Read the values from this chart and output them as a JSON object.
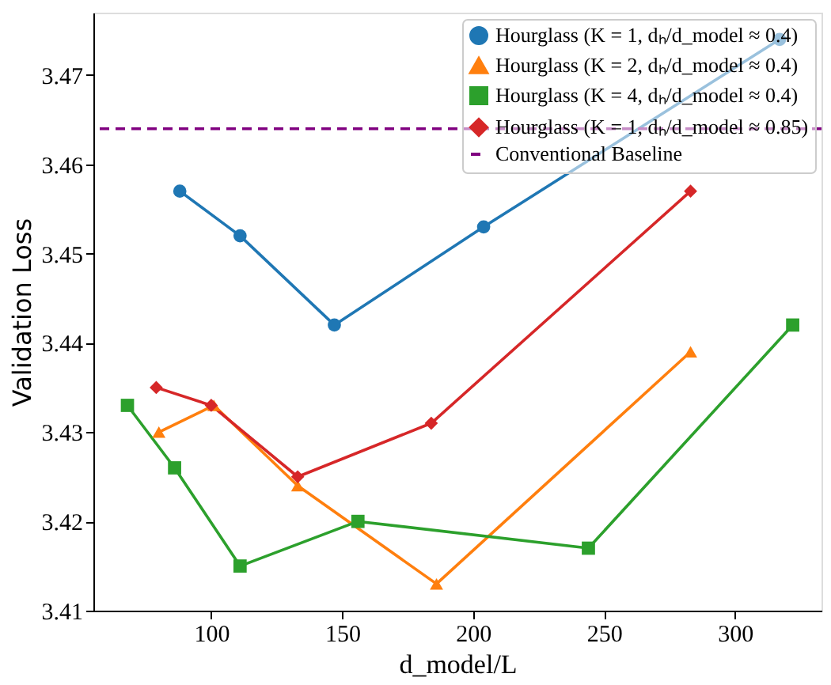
{
  "chart_data": {
    "type": "line",
    "xlabel": "d_model/L",
    "ylabel": "Validation Loss",
    "xlim": [
      55,
      333
    ],
    "ylim": [
      3.41,
      3.477
    ],
    "xticks": [
      100,
      150,
      200,
      250,
      300
    ],
    "yticks": [
      3.41,
      3.42,
      3.43,
      3.44,
      3.45,
      3.46,
      3.47
    ],
    "grid": false,
    "legend": "top right",
    "line_style": "solid",
    "series": [
      {
        "name": "Hourglass (K = 1, dₕ/d_model ≈ 0.4)",
        "color": "#1f77b4",
        "marker": "circle",
        "x": [
          88,
          111,
          147,
          204,
          317
        ],
        "values": [
          3.457,
          3.452,
          3.442,
          3.453,
          3.474
        ]
      },
      {
        "name": "Hourglass (K = 2, dₕ/d_model ≈ 0.4)",
        "color": "#ff7f0e",
        "marker": "triangle",
        "x": [
          80,
          101,
          133,
          186,
          283
        ],
        "values": [
          3.43,
          3.433,
          3.424,
          3.413,
          3.439
        ]
      },
      {
        "name": "Hourglass (K = 4, dₕ/d_model ≈ 0.4)",
        "color": "#2ca02c",
        "marker": "square",
        "x": [
          68,
          86,
          111,
          156,
          244,
          322
        ],
        "values": [
          3.433,
          3.426,
          3.415,
          3.42,
          3.417,
          3.442
        ]
      },
      {
        "name": "Hourglass (K = 1, dₕ/d_model ≈ 0.85)",
        "color": "#d62728",
        "marker": "diamond",
        "x": [
          79,
          100,
          133,
          184,
          283
        ],
        "values": [
          3.435,
          3.433,
          3.425,
          3.431,
          3.457
        ]
      }
    ],
    "ref_lines": [
      {
        "axis": "y",
        "value": 3.464,
        "label": "Conventional Baseline",
        "color": "#800080",
        "line_style": "dashed"
      }
    ]
  }
}
